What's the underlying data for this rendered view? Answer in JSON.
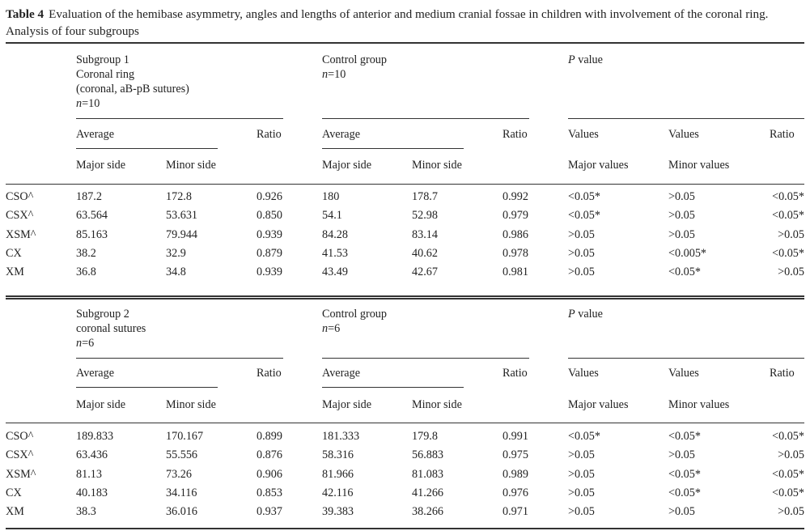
{
  "caption": {
    "label": "Table 4",
    "text": "Evaluation of the hemibase asymmetry, angles and lengths of anterior and medium cranial fossae in children with involvement of the coronal ring. Analysis of four subgroups"
  },
  "panels": [
    {
      "group_lines": [
        "Subgroup 1",
        "Coronal ring",
        "(coronal, aB-pB sutures)"
      ],
      "group_n": "n=10",
      "control_title": "Control group",
      "control_n": "n=10",
      "pvalue_title": "P value",
      "rows": [
        {
          "label": "CSO^",
          "sub_major": "187.2",
          "sub_minor": "172.8",
          "sub_ratio": "0.926",
          "ctl_major": "180",
          "ctl_minor": "178.7",
          "ctl_ratio": "0.992",
          "p_major": "<0.05*",
          "p_minor": ">0.05",
          "p_ratio": "<0.05*"
        },
        {
          "label": "CSX^",
          "sub_major": "63.564",
          "sub_minor": "53.631",
          "sub_ratio": "0.850",
          "ctl_major": "54.1",
          "ctl_minor": "52.98",
          "ctl_ratio": "0.979",
          "p_major": "<0.05*",
          "p_minor": ">0.05",
          "p_ratio": "<0.05*"
        },
        {
          "label": "XSM^",
          "sub_major": "85.163",
          "sub_minor": "79.944",
          "sub_ratio": "0.939",
          "ctl_major": "84.28",
          "ctl_minor": "83.14",
          "ctl_ratio": "0.986",
          "p_major": ">0.05",
          "p_minor": ">0.05",
          "p_ratio": ">0.05"
        },
        {
          "label": "CX",
          "sub_major": "38.2",
          "sub_minor": "32.9",
          "sub_ratio": "0.879",
          "ctl_major": "41.53",
          "ctl_minor": "40.62",
          "ctl_ratio": "0.978",
          "p_major": ">0.05",
          "p_minor": "<0.005*",
          "p_ratio": "<0.05*"
        },
        {
          "label": "XM",
          "sub_major": "36.8",
          "sub_minor": "34.8",
          "sub_ratio": "0.939",
          "ctl_major": "43.49",
          "ctl_minor": "42.67",
          "ctl_ratio": "0.981",
          "p_major": ">0.05",
          "p_minor": "<0.05*",
          "p_ratio": ">0.05"
        }
      ]
    },
    {
      "group_lines": [
        "Subgroup 2",
        "coronal sutures"
      ],
      "group_n": "n=6",
      "control_title": "Control group",
      "control_n": "n=6",
      "pvalue_title": "P value",
      "rows": [
        {
          "label": "CSO^",
          "sub_major": "189.833",
          "sub_minor": "170.167",
          "sub_ratio": "0.899",
          "ctl_major": "181.333",
          "ctl_minor": "179.8",
          "ctl_ratio": "0.991",
          "p_major": "<0.05*",
          "p_minor": "<0.05*",
          "p_ratio": "<0.05*"
        },
        {
          "label": "CSX^",
          "sub_major": "63.436",
          "sub_minor": "55.556",
          "sub_ratio": "0.876",
          "ctl_major": "58.316",
          "ctl_minor": "56.883",
          "ctl_ratio": "0.975",
          "p_major": ">0.05",
          "p_minor": ">0.05",
          "p_ratio": ">0.05"
        },
        {
          "label": "XSM^",
          "sub_major": "81.13",
          "sub_minor": "73.26",
          "sub_ratio": "0.906",
          "ctl_major": "81.966",
          "ctl_minor": "81.083",
          "ctl_ratio": "0.989",
          "p_major": ">0.05",
          "p_minor": "<0.05*",
          "p_ratio": "<0.05*"
        },
        {
          "label": "CX",
          "sub_major": "40.183",
          "sub_minor": "34.116",
          "sub_ratio": "0.853",
          "ctl_major": "42.116",
          "ctl_minor": "41.266",
          "ctl_ratio": "0.976",
          "p_major": ">0.05",
          "p_minor": "<0.05*",
          "p_ratio": "<0.05*"
        },
        {
          "label": "XM",
          "sub_major": "38.3",
          "sub_minor": "36.016",
          "sub_ratio": "0.937",
          "ctl_major": "39.383",
          "ctl_minor": "38.266",
          "ctl_ratio": "0.971",
          "p_major": ">0.05",
          "p_minor": ">0.05",
          "p_ratio": ">0.05"
        }
      ]
    }
  ],
  "headers": {
    "average": "Average",
    "ratio": "Ratio",
    "values": "Values",
    "major_side": "Major side",
    "minor_side": "Minor side",
    "major_values": "Major values",
    "minor_values": "Minor values"
  }
}
